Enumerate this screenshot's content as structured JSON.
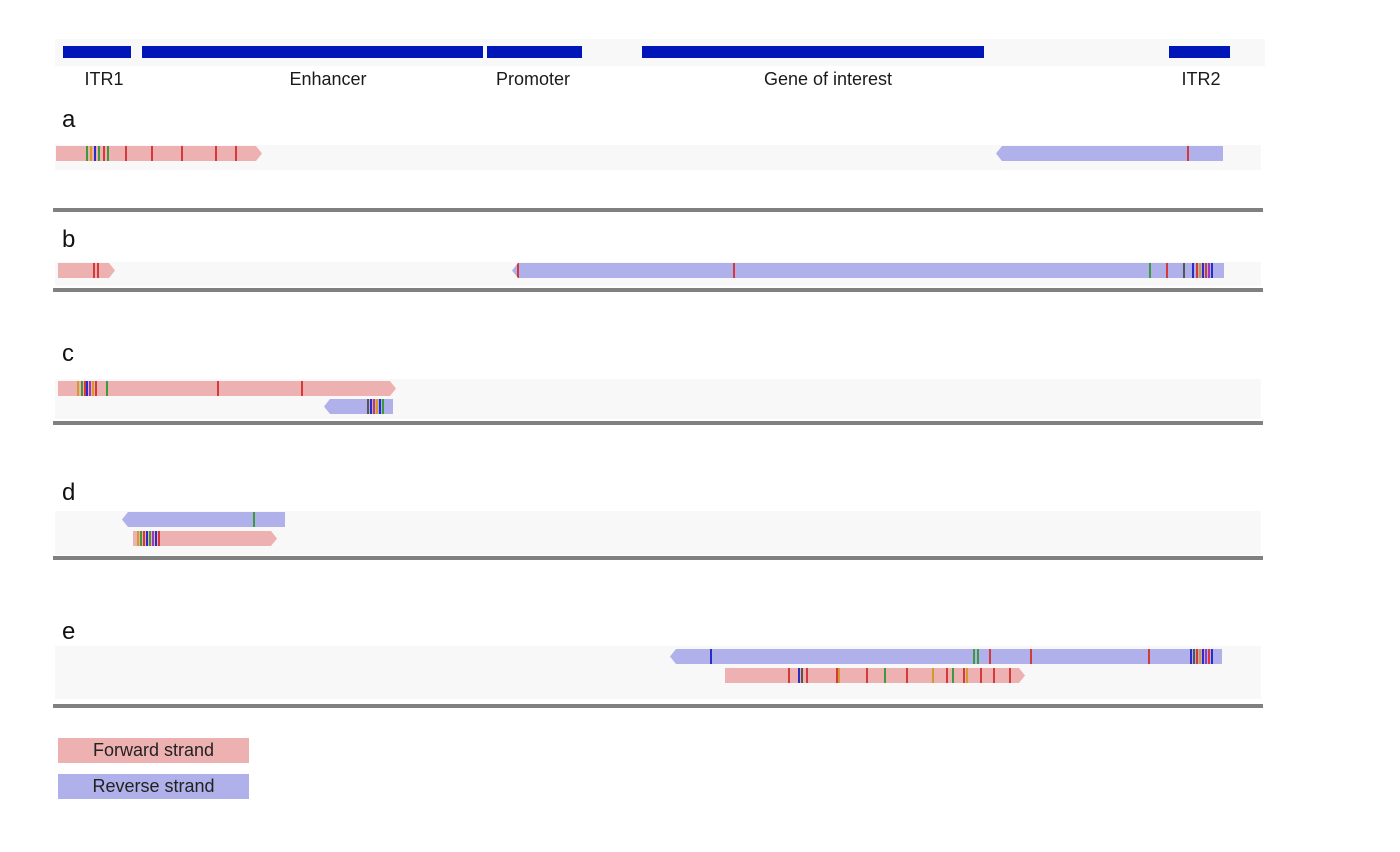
{
  "colors": {
    "feature": "#0016b8",
    "forward": "#eeb1b1",
    "reverse": "#b0b0ea",
    "separator": "#808080",
    "track_bg": "#f8f8f8"
  },
  "features": [
    {
      "id": "itr1",
      "label": "ITR1"
    },
    {
      "id": "enhancer",
      "label": "Enhancer"
    },
    {
      "id": "promoter",
      "label": "Promoter"
    },
    {
      "id": "gene",
      "label": "Gene of interest"
    },
    {
      "id": "itr2",
      "label": "ITR2"
    }
  ],
  "panels": [
    {
      "id": "a",
      "label": "a"
    },
    {
      "id": "b",
      "label": "b"
    },
    {
      "id": "c",
      "label": "c"
    },
    {
      "id": "d",
      "label": "d"
    },
    {
      "id": "e",
      "label": "e"
    }
  ],
  "legend": {
    "forward_label": "Forward strand",
    "reverse_label": "Reverse strand"
  }
}
